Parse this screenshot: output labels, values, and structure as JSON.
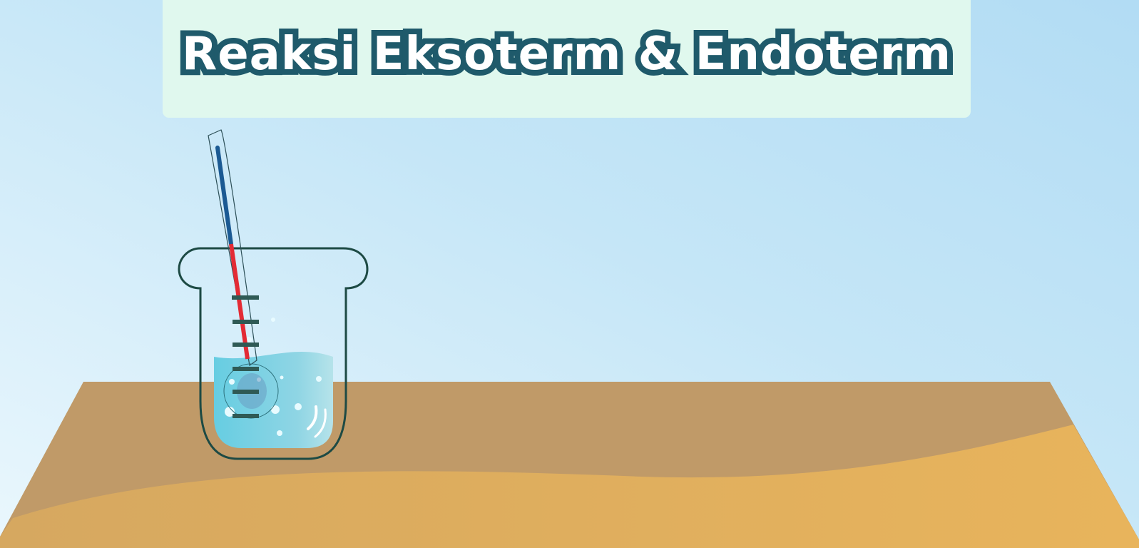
{
  "title": "Reaksi Eksoterm & Endoterm",
  "scene": {
    "background_icon": "sky-background",
    "table_icon": "wooden-table",
    "beaker_icon": "beaker-icon",
    "thermometer_icon": "thermometer-icon",
    "colors": {
      "sky_top": "#b3dff5",
      "sky_bottom": "#e9f6fc",
      "banner": "#e0f8ee",
      "title_outline": "#1f5a6b",
      "table_back": "#c09a68",
      "table_front": "#e3b25b",
      "beaker_outline": "#1d4a44",
      "liquid": "#6fcfe3",
      "thermo_cold": "#1b5a93",
      "thermo_hot": "#e32b35",
      "thermo_marks": "#2f5a55"
    }
  }
}
